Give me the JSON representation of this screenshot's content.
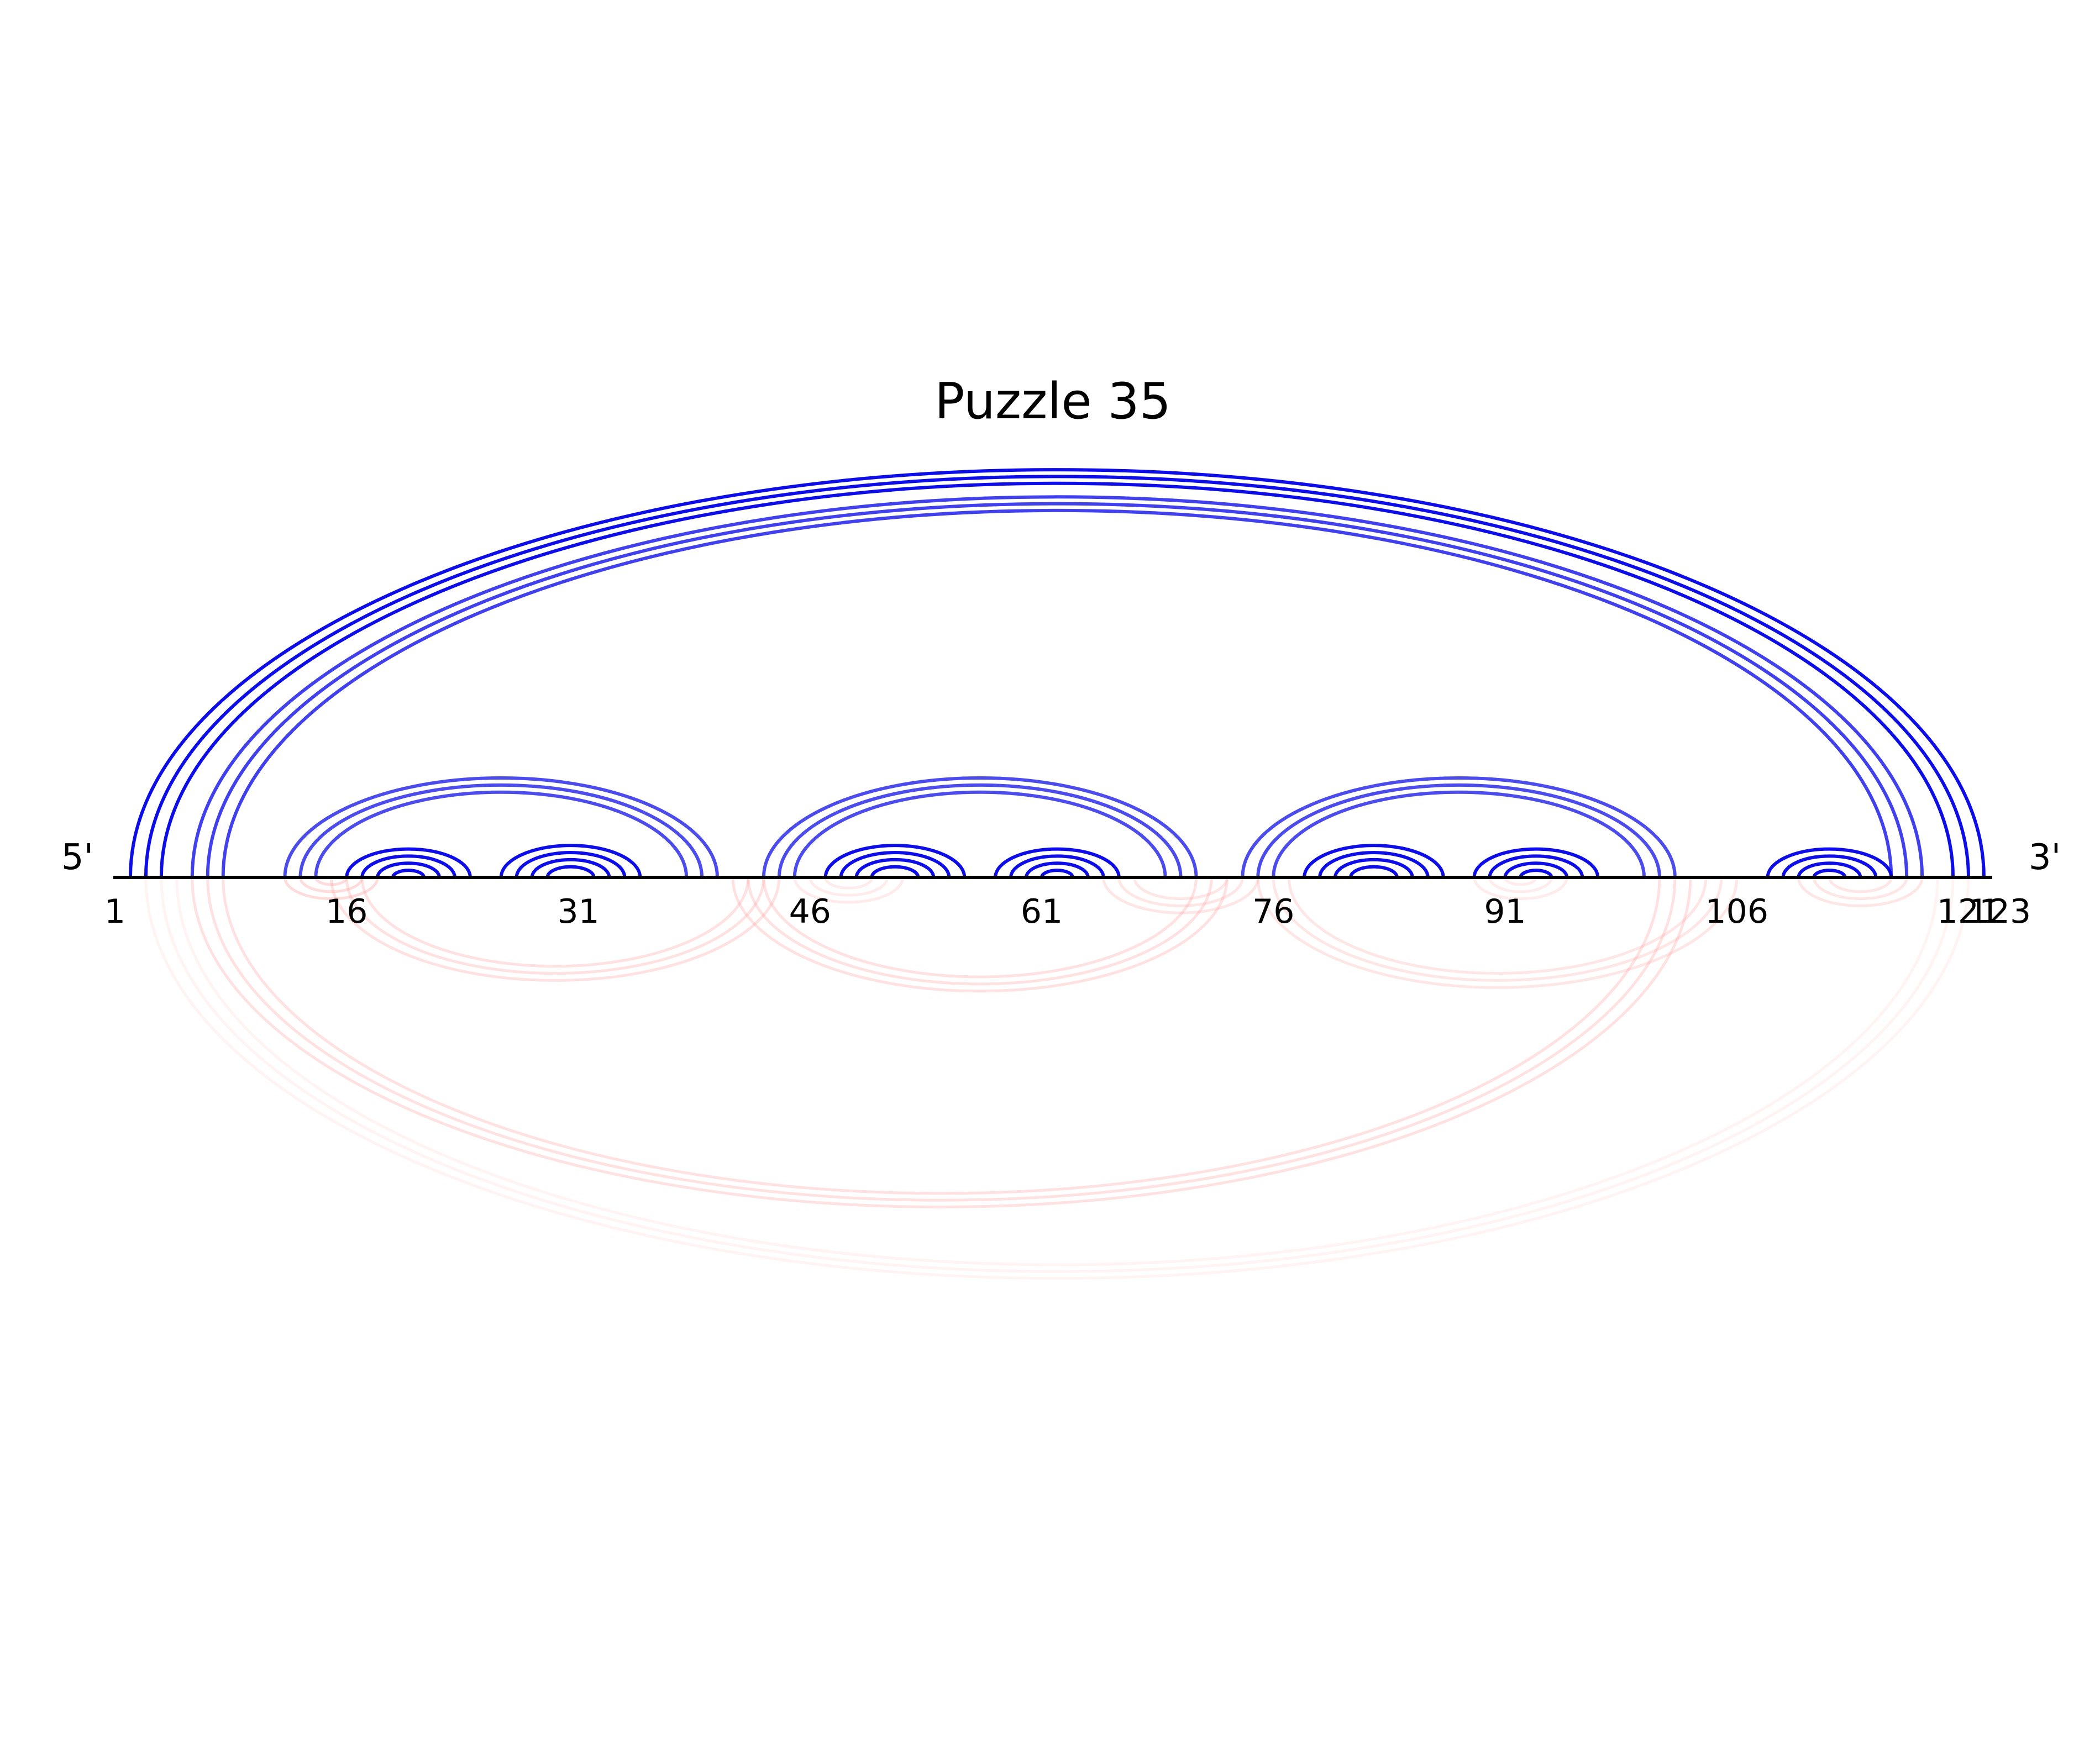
{
  "title": "Puzzle 35",
  "five_prime_label": "5'",
  "three_prime_label": "3'",
  "sequence_length": 123,
  "tick_labels": [
    "1",
    "16",
    "31",
    "46",
    "61",
    "76",
    "91",
    "106",
    "121",
    "123"
  ],
  "tick_positions": [
    1,
    16,
    31,
    46,
    61,
    76,
    91,
    106,
    121,
    123
  ],
  "colors": {
    "backbone": "#000000",
    "upper_arcs": "#0000e6",
    "lower_arcs": "#ff9a9a"
  },
  "upper_helices": [
    {
      "i": 2,
      "j": 122,
      "count": 3,
      "opacity": 0.95
    },
    {
      "i": 6,
      "j": 118,
      "count": 3,
      "opacity": 0.75
    },
    {
      "i": 12,
      "j": 40,
      "count": 3,
      "opacity": 0.7
    },
    {
      "i": 16,
      "j": 24,
      "count": 4,
      "opacity": 0.95
    },
    {
      "i": 26,
      "j": 35,
      "count": 4,
      "opacity": 0.95
    },
    {
      "i": 43,
      "j": 71,
      "count": 3,
      "opacity": 0.7
    },
    {
      "i": 47,
      "j": 56,
      "count": 4,
      "opacity": 0.95
    },
    {
      "i": 58,
      "j": 66,
      "count": 4,
      "opacity": 0.95
    },
    {
      "i": 74,
      "j": 102,
      "count": 3,
      "opacity": 0.7
    },
    {
      "i": 78,
      "j": 87,
      "count": 4,
      "opacity": 0.95
    },
    {
      "i": 89,
      "j": 97,
      "count": 4,
      "opacity": 0.95
    },
    {
      "i": 108,
      "j": 116,
      "count": 4,
      "opacity": 0.95
    }
  ],
  "lower_helices": [
    {
      "i": 12,
      "j": 18,
      "count": 3,
      "opacity": 0.35
    },
    {
      "i": 15,
      "j": 44,
      "count": 3,
      "opacity": 0.3
    },
    {
      "i": 41,
      "j": 73,
      "count": 3,
      "opacity": 0.3
    },
    {
      "i": 45,
      "j": 52,
      "count": 3,
      "opacity": 0.2
    },
    {
      "i": 65,
      "j": 75,
      "count": 3,
      "opacity": 0.25
    },
    {
      "i": 75,
      "j": 106,
      "count": 3,
      "opacity": 0.25
    },
    {
      "i": 89,
      "j": 95,
      "count": 3,
      "opacity": 0.2
    },
    {
      "i": 110,
      "j": 118,
      "count": 3,
      "opacity": 0.25
    },
    {
      "i": 6,
      "j": 103,
      "count": 3,
      "opacity": 0.3
    },
    {
      "i": 3,
      "j": 121,
      "count": 3,
      "opacity": 0.12
    }
  ]
}
